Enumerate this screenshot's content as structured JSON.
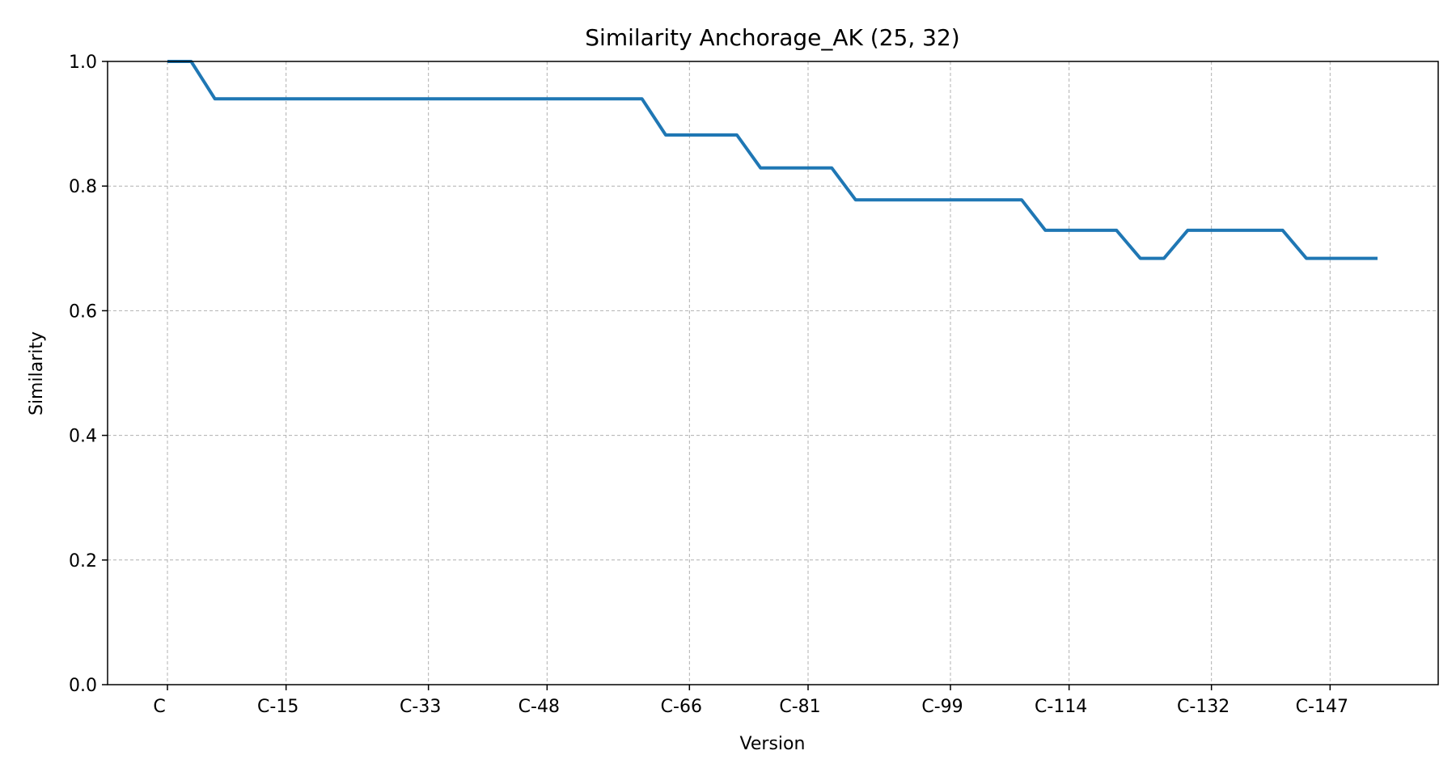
{
  "chart_data": {
    "type": "line",
    "title": "Similarity Anchorage_AK (25, 32)",
    "xlabel": "Version",
    "ylabel": "Similarity",
    "ylim": [
      0,
      1.0
    ],
    "yticks": [
      "0.0",
      "0.2",
      "0.4",
      "0.6",
      "0.8",
      "1.0"
    ],
    "grid": true,
    "line_color": "#1f77b4",
    "xtick_labels": [
      "C",
      "C-15",
      "C-33",
      "C-48",
      "C-66",
      "C-81",
      "C-99",
      "C-114",
      "C-132",
      "C-147"
    ],
    "xtick_positions": [
      0,
      5,
      11,
      16,
      22,
      27,
      33,
      38,
      44,
      49
    ],
    "series": [
      {
        "values": [
          1.0,
          1.0,
          0.94,
          0.94,
          0.94,
          0.94,
          0.94,
          0.94,
          0.94,
          0.94,
          0.94,
          0.94,
          0.94,
          0.94,
          0.94,
          0.94,
          0.94,
          0.94,
          0.94,
          0.94,
          0.94,
          0.882,
          0.882,
          0.882,
          0.882,
          0.829,
          0.829,
          0.829,
          0.829,
          0.778,
          0.778,
          0.778,
          0.778,
          0.778,
          0.778,
          0.778,
          0.778,
          0.729,
          0.729,
          0.729,
          0.729,
          0.684,
          0.684,
          0.729,
          0.729,
          0.729,
          0.729,
          0.729,
          0.684,
          0.684,
          0.684,
          0.684
        ]
      }
    ]
  }
}
